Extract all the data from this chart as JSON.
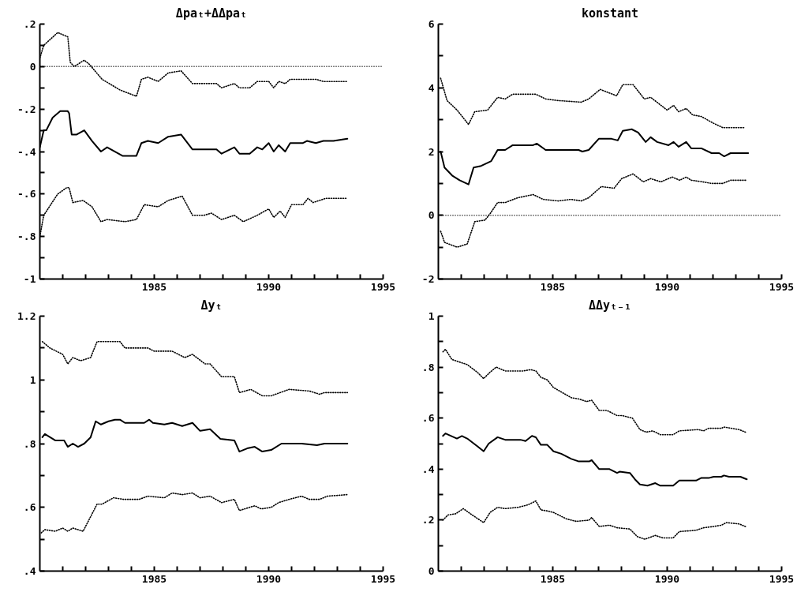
{
  "chart_data": [
    {
      "type": "line",
      "title": "Δpaₜ+ΔΔpaₜ",
      "xlim": [
        1980,
        1995
      ],
      "ylim": [
        -1,
        0.2
      ],
      "xticks": [
        {
          "value": 1981,
          "label": null
        },
        {
          "value": 1982,
          "label": null
        },
        {
          "value": 1983,
          "label": null
        },
        {
          "value": 1984,
          "label": null
        },
        1985,
        {
          "value": 1986,
          "label": null
        },
        {
          "value": 1987,
          "label": null
        },
        {
          "value": 1988,
          "label": null
        },
        {
          "value": 1989,
          "label": null
        },
        1990,
        {
          "value": 1991,
          "label": null
        },
        {
          "value": 1992,
          "label": null
        },
        {
          "value": 1993,
          "label": null
        },
        {
          "value": 1994,
          "label": null
        },
        1995
      ],
      "yticks": [
        {
          "value": 0.2,
          "label": ".2"
        },
        {
          "value": 0.1,
          "label": null
        },
        0,
        {
          "value": -0.1,
          "label": null
        },
        {
          "value": -0.2,
          "label": "-.2"
        },
        {
          "value": -0.3,
          "label": null
        },
        {
          "value": -0.4,
          "label": "-.4"
        },
        {
          "value": -0.5,
          "label": null
        },
        {
          "value": -0.6,
          "label": "-.6"
        },
        {
          "value": -0.7,
          "label": null
        },
        {
          "value": -0.8,
          "label": "-.8"
        },
        {
          "value": -0.9,
          "label": null
        },
        -1
      ],
      "ref_lines": [
        {
          "axis": "y",
          "value": 0,
          "color": "#000000",
          "line_style": "dotted"
        }
      ],
      "series": [
        {
          "color": "#000000",
          "line_style": "solid",
          "x": [
            1980.0,
            1980.17,
            1980.28,
            1980.56,
            1980.89,
            1981.22,
            1981.28,
            1981.39,
            1981.61,
            1981.94,
            1982.28,
            1982.67,
            1982.94,
            1983.61,
            1984.22,
            1984.44,
            1984.72,
            1985.17,
            1985.61,
            1986.17,
            1986.67,
            1987.72,
            1987.94,
            1988.5,
            1988.72,
            1989.17,
            1989.5,
            1989.72,
            1990.0,
            1990.22,
            1990.44,
            1990.72,
            1990.94,
            1991.5,
            1991.67,
            1992.06,
            1992.39,
            1992.83,
            1993.44
          ],
          "values": [
            -0.38,
            -0.3,
            -0.3,
            -0.24,
            -0.21,
            -0.21,
            -0.22,
            -0.32,
            -0.32,
            -0.3,
            -0.35,
            -0.4,
            -0.38,
            -0.42,
            -0.42,
            -0.36,
            -0.35,
            -0.36,
            -0.33,
            -0.32,
            -0.39,
            -0.39,
            -0.41,
            -0.38,
            -0.41,
            -0.41,
            -0.38,
            -0.39,
            -0.36,
            -0.4,
            -0.37,
            -0.4,
            -0.36,
            -0.36,
            -0.35,
            -0.36,
            -0.35,
            -0.35,
            -0.34
          ]
        },
        {
          "color": "#000000",
          "line_style": "dotted",
          "x": [
            1980.0,
            1980.17,
            1980.78,
            1981.22,
            1981.33,
            1981.5,
            1981.94,
            1982.17,
            1982.72,
            1983.5,
            1984.22,
            1984.44,
            1984.72,
            1985.17,
            1985.61,
            1986.17,
            1986.67,
            1987.72,
            1987.94,
            1988.5,
            1988.72,
            1989.17,
            1989.5,
            1990.0,
            1990.22,
            1990.44,
            1990.72,
            1990.94,
            1991.5,
            1992.06,
            1992.39,
            1993.44
          ],
          "values": [
            0.04,
            0.1,
            0.16,
            0.14,
            0.02,
            0.0,
            0.03,
            0.01,
            -0.06,
            -0.11,
            -0.14,
            -0.06,
            -0.05,
            -0.07,
            -0.03,
            -0.02,
            -0.08,
            -0.08,
            -0.1,
            -0.08,
            -0.1,
            -0.1,
            -0.07,
            -0.07,
            -0.1,
            -0.07,
            -0.08,
            -0.06,
            -0.06,
            -0.06,
            -0.07,
            -0.07
          ]
        },
        {
          "color": "#000000",
          "line_style": "dotted",
          "x": [
            1980.0,
            1980.17,
            1980.78,
            1981.17,
            1981.28,
            1981.44,
            1981.89,
            1982.28,
            1982.67,
            1982.94,
            1983.72,
            1984.22,
            1984.56,
            1985.17,
            1985.61,
            1986.22,
            1986.67,
            1987.17,
            1987.5,
            1987.94,
            1988.5,
            1988.89,
            1989.5,
            1990.0,
            1990.22,
            1990.5,
            1990.72,
            1991.0,
            1991.5,
            1991.72,
            1991.94,
            1992.5,
            1993.39
          ],
          "values": [
            -0.8,
            -0.7,
            -0.6,
            -0.57,
            -0.57,
            -0.64,
            -0.63,
            -0.66,
            -0.73,
            -0.72,
            -0.73,
            -0.72,
            -0.65,
            -0.66,
            -0.63,
            -0.61,
            -0.7,
            -0.7,
            -0.69,
            -0.72,
            -0.7,
            -0.73,
            -0.7,
            -0.67,
            -0.71,
            -0.68,
            -0.71,
            -0.65,
            -0.65,
            -0.62,
            -0.64,
            -0.62,
            -0.62
          ]
        }
      ]
    },
    {
      "type": "line",
      "title": "konstant",
      "xlim": [
        1980,
        1995
      ],
      "ylim": [
        -2,
        6
      ],
      "xticks": [
        {
          "value": 1981,
          "label": null
        },
        {
          "value": 1982,
          "label": null
        },
        {
          "value": 1983,
          "label": null
        },
        {
          "value": 1984,
          "label": null
        },
        1985,
        {
          "value": 1986,
          "label": null
        },
        {
          "value": 1987,
          "label": null
        },
        {
          "value": 1988,
          "label": null
        },
        {
          "value": 1989,
          "label": null
        },
        1990,
        {
          "value": 1991,
          "label": null
        },
        {
          "value": 1992,
          "label": null
        },
        {
          "value": 1993,
          "label": null
        },
        {
          "value": 1994,
          "label": null
        },
        1995
      ],
      "yticks": [
        6,
        {
          "value": 5,
          "label": null
        },
        4,
        {
          "value": 3,
          "label": null
        },
        2,
        {
          "value": 1,
          "label": null
        },
        0,
        {
          "value": -1,
          "label": null
        },
        -2
      ],
      "ref_lines": [
        {
          "axis": "y",
          "value": 0,
          "color": "#000000",
          "line_style": "dotted"
        }
      ],
      "series": [
        {
          "color": "#000000",
          "line_style": "solid",
          "x": [
            1980.1,
            1980.27,
            1980.6,
            1980.93,
            1981.32,
            1981.54,
            1981.87,
            1982.31,
            1982.59,
            1982.92,
            1983.25,
            1984.14,
            1984.3,
            1984.69,
            1986.13,
            1986.29,
            1986.57,
            1987.01,
            1987.57,
            1987.84,
            1988.06,
            1988.45,
            1988.73,
            1989.06,
            1989.28,
            1989.56,
            1990.06,
            1990.28,
            1990.5,
            1990.83,
            1991.05,
            1991.49,
            1991.94,
            1992.27,
            1992.49,
            1992.77,
            1993.54
          ],
          "values": [
            2.0,
            1.5,
            1.25,
            1.1,
            0.97,
            1.5,
            1.55,
            1.7,
            2.05,
            2.05,
            2.2,
            2.2,
            2.25,
            2.05,
            2.05,
            2.0,
            2.05,
            2.4,
            2.4,
            2.35,
            2.65,
            2.7,
            2.6,
            2.3,
            2.45,
            2.3,
            2.2,
            2.3,
            2.15,
            2.3,
            2.1,
            2.1,
            1.95,
            1.95,
            1.85,
            1.95,
            1.95
          ]
        },
        {
          "color": "#000000",
          "line_style": "dotted",
          "x": [
            1980.1,
            1980.38,
            1980.82,
            1981.32,
            1981.59,
            1982.15,
            1982.59,
            1982.92,
            1983.25,
            1984.25,
            1984.69,
            1985.24,
            1986.24,
            1986.57,
            1987.07,
            1987.79,
            1988.06,
            1988.51,
            1989.0,
            1989.28,
            1990.0,
            1990.28,
            1990.5,
            1990.83,
            1991.11,
            1991.49,
            1991.99,
            1992.43,
            1993.37
          ],
          "values": [
            4.3,
            3.6,
            3.3,
            2.85,
            3.25,
            3.3,
            3.7,
            3.65,
            3.8,
            3.8,
            3.65,
            3.6,
            3.55,
            3.65,
            3.95,
            3.75,
            4.1,
            4.1,
            3.65,
            3.7,
            3.3,
            3.45,
            3.25,
            3.35,
            3.15,
            3.1,
            2.9,
            2.75,
            2.75
          ]
        },
        {
          "color": "#000000",
          "line_style": "dotted",
          "x": [
            1980.1,
            1980.27,
            1980.82,
            1981.26,
            1981.59,
            1982.04,
            1982.26,
            1982.59,
            1982.92,
            1983.47,
            1984.14,
            1984.58,
            1985.24,
            1985.8,
            1986.24,
            1986.57,
            1987.12,
            1987.68,
            1988.01,
            1988.51,
            1988.95,
            1989.28,
            1989.72,
            1990.22,
            1990.55,
            1990.83,
            1991.05,
            1991.55,
            1991.94,
            1992.43,
            1992.77,
            1993.48
          ],
          "values": [
            -0.5,
            -0.85,
            -1.0,
            -0.9,
            -0.2,
            -0.15,
            0.05,
            0.4,
            0.4,
            0.55,
            0.65,
            0.5,
            0.45,
            0.5,
            0.45,
            0.55,
            0.9,
            0.85,
            1.15,
            1.3,
            1.05,
            1.15,
            1.05,
            1.2,
            1.1,
            1.2,
            1.1,
            1.05,
            1.0,
            1.0,
            1.1,
            1.1
          ]
        }
      ]
    },
    {
      "type": "line",
      "title": "Δyₜ",
      "xlim": [
        1980,
        1995
      ],
      "ylim": [
        0.4,
        1.2
      ],
      "xticks": [
        {
          "value": 1981,
          "label": null
        },
        {
          "value": 1982,
          "label": null
        },
        {
          "value": 1983,
          "label": null
        },
        {
          "value": 1984,
          "label": null
        },
        1985,
        {
          "value": 1986,
          "label": null
        },
        {
          "value": 1987,
          "label": null
        },
        {
          "value": 1988,
          "label": null
        },
        {
          "value": 1989,
          "label": null
        },
        1990,
        {
          "value": 1991,
          "label": null
        },
        {
          "value": 1992,
          "label": null
        },
        {
          "value": 1993,
          "label": null
        },
        {
          "value": 1994,
          "label": null
        },
        1995
      ],
      "yticks": [
        1.2,
        {
          "value": 1.1,
          "label": null
        },
        1,
        {
          "value": 0.9,
          "label": null
        },
        {
          "value": 0.8,
          "label": ".8"
        },
        {
          "value": 0.7,
          "label": null
        },
        {
          "value": 0.6,
          "label": ".6"
        },
        {
          "value": 0.5,
          "label": null
        },
        {
          "value": 0.4,
          "label": ".4"
        }
      ],
      "series": [
        {
          "color": "#000000",
          "line_style": "solid",
          "x": [
            1980.11,
            1980.22,
            1980.67,
            1981.06,
            1981.22,
            1981.44,
            1981.67,
            1981.94,
            1982.22,
            1982.44,
            1982.67,
            1983.0,
            1983.28,
            1983.5,
            1983.72,
            1984.56,
            1984.78,
            1984.94,
            1985.44,
            1985.78,
            1986.22,
            1986.67,
            1987.0,
            1987.44,
            1987.89,
            1988.5,
            1988.72,
            1989.06,
            1989.39,
            1989.72,
            1990.11,
            1990.56,
            1991.44,
            1992.11,
            1992.44,
            1993.44
          ],
          "values": [
            0.82,
            0.83,
            0.81,
            0.81,
            0.79,
            0.8,
            0.79,
            0.8,
            0.82,
            0.87,
            0.86,
            0.87,
            0.875,
            0.875,
            0.865,
            0.865,
            0.875,
            0.865,
            0.86,
            0.865,
            0.855,
            0.865,
            0.84,
            0.845,
            0.815,
            0.81,
            0.775,
            0.785,
            0.79,
            0.775,
            0.78,
            0.8,
            0.8,
            0.795,
            0.8,
            0.8
          ]
        },
        {
          "color": "#000000",
          "line_style": "dotted",
          "x": [
            1980.11,
            1980.44,
            1981.0,
            1981.22,
            1981.44,
            1981.78,
            1982.22,
            1982.5,
            1983.0,
            1983.5,
            1983.72,
            1984.33,
            1984.72,
            1985.0,
            1985.78,
            1986.33,
            1986.67,
            1987.22,
            1987.44,
            1987.94,
            1988.5,
            1988.72,
            1989.22,
            1989.72,
            1990.11,
            1990.89,
            1991.78,
            1992.22,
            1992.44,
            1993.44
          ],
          "values": [
            1.12,
            1.1,
            1.08,
            1.05,
            1.07,
            1.06,
            1.07,
            1.12,
            1.12,
            1.12,
            1.1,
            1.1,
            1.1,
            1.09,
            1.09,
            1.07,
            1.08,
            1.05,
            1.05,
            1.01,
            1.01,
            0.96,
            0.97,
            0.95,
            0.95,
            0.97,
            0.965,
            0.955,
            0.96,
            0.96
          ]
        },
        {
          "color": "#000000",
          "line_style": "dotted",
          "x": [
            1980.06,
            1980.22,
            1980.67,
            1981.0,
            1981.22,
            1981.44,
            1981.89,
            1982.5,
            1982.72,
            1983.22,
            1983.67,
            1984.33,
            1984.72,
            1985.44,
            1985.78,
            1986.22,
            1986.67,
            1987.0,
            1987.44,
            1987.94,
            1988.5,
            1988.72,
            1989.39,
            1989.67,
            1990.11,
            1990.44,
            1990.89,
            1991.44,
            1991.78,
            1992.22,
            1992.56,
            1993.44
          ],
          "values": [
            0.52,
            0.53,
            0.525,
            0.535,
            0.525,
            0.535,
            0.525,
            0.61,
            0.61,
            0.63,
            0.625,
            0.625,
            0.635,
            0.63,
            0.645,
            0.64,
            0.645,
            0.63,
            0.635,
            0.615,
            0.625,
            0.59,
            0.605,
            0.595,
            0.6,
            0.615,
            0.625,
            0.635,
            0.625,
            0.625,
            0.635,
            0.64
          ]
        }
      ]
    },
    {
      "type": "line",
      "title": "ΔΔyₜ₋₁",
      "xlim": [
        1980,
        1995
      ],
      "ylim": [
        0,
        1
      ],
      "xticks": [
        {
          "value": 1981,
          "label": null
        },
        {
          "value": 1982,
          "label": null
        },
        {
          "value": 1983,
          "label": null
        },
        {
          "value": 1984,
          "label": null
        },
        1985,
        {
          "value": 1986,
          "label": null
        },
        {
          "value": 1987,
          "label": null
        },
        {
          "value": 1988,
          "label": null
        },
        {
          "value": 1989,
          "label": null
        },
        1990,
        {
          "value": 1991,
          "label": null
        },
        {
          "value": 1992,
          "label": null
        },
        {
          "value": 1993,
          "label": null
        },
        {
          "value": 1994,
          "label": null
        },
        1995
      ],
      "yticks": [
        1,
        {
          "value": 0.9,
          "label": null
        },
        {
          "value": 0.8,
          "label": ".8"
        },
        {
          "value": 0.7,
          "label": null
        },
        {
          "value": 0.6,
          "label": ".6"
        },
        {
          "value": 0.5,
          "label": null
        },
        {
          "value": 0.4,
          "label": ".4"
        },
        {
          "value": 0.3,
          "label": null
        },
        {
          "value": 0.2,
          "label": ".2"
        },
        {
          "value": 0.1,
          "label": null
        },
        0
      ],
      "series": [
        {
          "color": "#000000",
          "line_style": "solid",
          "x": [
            1980.2,
            1980.31,
            1980.81,
            1981.03,
            1981.26,
            1981.7,
            1981.98,
            1982.2,
            1982.59,
            1982.92,
            1983.59,
            1983.81,
            1984.09,
            1984.26,
            1984.48,
            1984.76,
            1985.03,
            1985.37,
            1985.81,
            1986.14,
            1986.59,
            1986.7,
            1987.03,
            1987.48,
            1987.81,
            1987.92,
            1988.37,
            1988.59,
            1988.81,
            1989.14,
            1989.48,
            1989.7,
            1990.26,
            1990.53,
            1991.26,
            1991.48,
            1991.81,
            1992.03,
            1992.37,
            1992.48,
            1992.7,
            1993.2,
            1993.48
          ],
          "values": [
            0.53,
            0.54,
            0.52,
            0.53,
            0.52,
            0.49,
            0.47,
            0.5,
            0.525,
            0.515,
            0.515,
            0.51,
            0.53,
            0.525,
            0.495,
            0.495,
            0.47,
            0.46,
            0.44,
            0.43,
            0.43,
            0.435,
            0.4,
            0.4,
            0.385,
            0.39,
            0.385,
            0.36,
            0.34,
            0.335,
            0.345,
            0.335,
            0.335,
            0.355,
            0.355,
            0.365,
            0.365,
            0.37,
            0.37,
            0.375,
            0.37,
            0.37,
            0.36
          ]
        },
        {
          "color": "#000000",
          "line_style": "dotted",
          "x": [
            1980.2,
            1980.31,
            1980.59,
            1981.26,
            1981.7,
            1981.98,
            1982.26,
            1982.53,
            1982.92,
            1983.7,
            1984.03,
            1984.26,
            1984.48,
            1984.76,
            1985.03,
            1985.81,
            1986.14,
            1986.48,
            1986.7,
            1987.03,
            1987.37,
            1987.81,
            1988.03,
            1988.48,
            1988.81,
            1989.09,
            1989.37,
            1989.7,
            1990.26,
            1990.53,
            1991.37,
            1991.59,
            1991.81,
            1992.37,
            1992.48,
            1993.14,
            1993.42
          ],
          "values": [
            0.86,
            0.87,
            0.83,
            0.81,
            0.78,
            0.755,
            0.78,
            0.8,
            0.785,
            0.785,
            0.79,
            0.785,
            0.76,
            0.75,
            0.72,
            0.68,
            0.675,
            0.665,
            0.67,
            0.63,
            0.63,
            0.61,
            0.61,
            0.6,
            0.555,
            0.545,
            0.55,
            0.535,
            0.535,
            0.55,
            0.555,
            0.55,
            0.56,
            0.56,
            0.565,
            0.555,
            0.545
          ]
        },
        {
          "color": "#000000",
          "line_style": "dotted",
          "x": [
            1980.2,
            1980.42,
            1980.76,
            1981.09,
            1981.48,
            1981.98,
            1982.26,
            1982.59,
            1982.92,
            1983.48,
            1983.92,
            1984.26,
            1984.48,
            1984.81,
            1985.03,
            1985.59,
            1986.03,
            1986.59,
            1986.7,
            1987.03,
            1987.48,
            1987.81,
            1988.37,
            1988.7,
            1989.03,
            1989.48,
            1989.81,
            1990.26,
            1990.53,
            1991.26,
            1991.59,
            1992.03,
            1992.37,
            1992.59,
            1993.14,
            1993.42
          ],
          "values": [
            0.2,
            0.22,
            0.225,
            0.245,
            0.22,
            0.19,
            0.23,
            0.25,
            0.245,
            0.25,
            0.26,
            0.275,
            0.24,
            0.235,
            0.23,
            0.205,
            0.195,
            0.2,
            0.21,
            0.175,
            0.18,
            0.17,
            0.165,
            0.135,
            0.125,
            0.14,
            0.13,
            0.13,
            0.155,
            0.16,
            0.17,
            0.175,
            0.18,
            0.19,
            0.185,
            0.175
          ]
        }
      ]
    }
  ]
}
